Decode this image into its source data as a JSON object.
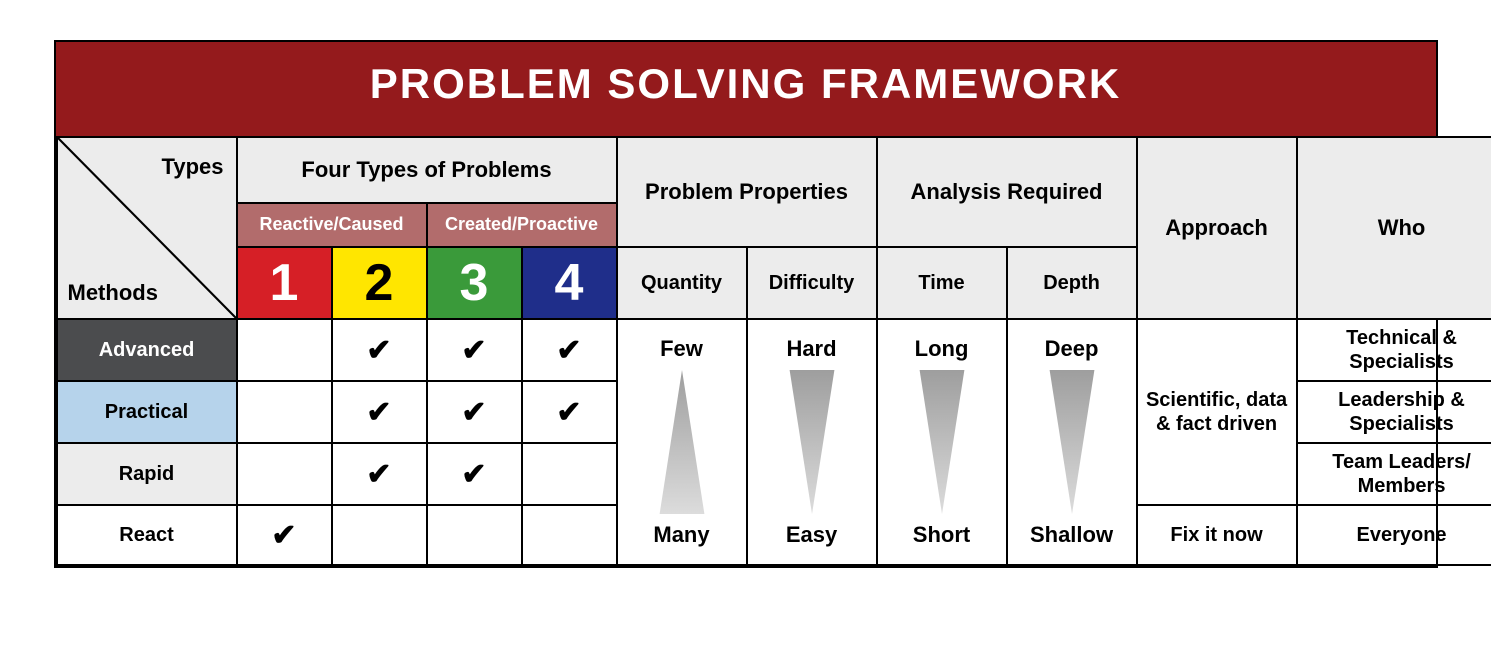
{
  "title": "PROBLEM SOLVING FRAMEWORK",
  "colors": {
    "title_bg": "#941a1c",
    "header_bg": "#ececec",
    "group_label_bg": "#b26c6c",
    "border": "#000000"
  },
  "diag": {
    "types": "Types",
    "methods": "Methods"
  },
  "headers": {
    "four_types": "Four Types of Problems",
    "problem_properties": "Problem Properties",
    "analysis_required": "Analysis Required",
    "approach": "Approach",
    "who": "Who",
    "quantity": "Quantity",
    "difficulty": "Difficulty",
    "time": "Time",
    "depth": "Depth"
  },
  "problem_type_groups": [
    {
      "label": "Reactive/Caused"
    },
    {
      "label": "Created/Proactive"
    }
  ],
  "problem_types": [
    {
      "num": "1",
      "bg": "#d61f26",
      "fg": "#ffffff"
    },
    {
      "num": "2",
      "bg": "#ffe600",
      "fg": "#000000"
    },
    {
      "num": "3",
      "bg": "#3a9a3a",
      "fg": "#ffffff"
    },
    {
      "num": "4",
      "bg": "#1f2e8a",
      "fg": "#ffffff"
    }
  ],
  "methods": [
    {
      "key": "advanced",
      "label": "Advanced",
      "checks": [
        false,
        true,
        true,
        true
      ],
      "who": "Technical & Specialists"
    },
    {
      "key": "practical",
      "label": "Practical",
      "checks": [
        false,
        true,
        true,
        true
      ],
      "who": "Leadership & Specialists"
    },
    {
      "key": "rapid",
      "label": "Rapid",
      "checks": [
        false,
        true,
        true,
        false
      ],
      "who": "Team Leaders/ Members"
    },
    {
      "key": "react",
      "label": "React",
      "checks": [
        true,
        false,
        false,
        false
      ],
      "who": "Everyone"
    }
  ],
  "approaches": {
    "scientific": "Scientific, data & fact driven",
    "fix": "Fix it now"
  },
  "properties": {
    "quantity": {
      "top": "Few",
      "bottom": "Many",
      "direction": "up"
    },
    "difficulty": {
      "top": "Hard",
      "bottom": "Easy",
      "direction": "down"
    },
    "time": {
      "top": "Long",
      "bottom": "Short",
      "direction": "down"
    },
    "depth": {
      "top": "Deep",
      "bottom": "Shallow",
      "direction": "down"
    }
  },
  "triangle_style": {
    "fill_top": "#9e9e9e",
    "fill_bottom": "#dcdcdc",
    "width_ratio": 0.35
  }
}
